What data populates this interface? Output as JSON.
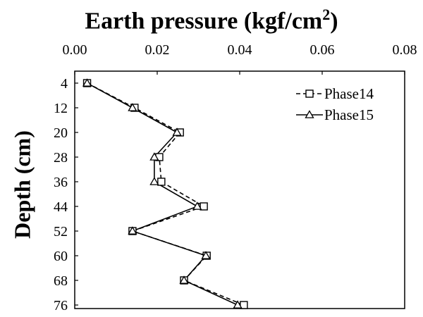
{
  "chart_data": {
    "type": "line",
    "title": "Earth pressure (kgf/cm",
    "title_superscript": "2",
    "title_suffix": ")",
    "ylabel": "Depth (cm)",
    "xlabel": "",
    "x_axis_position": "top",
    "y_axis_inverted": true,
    "xlim": [
      0,
      0.08
    ],
    "ylim": [
      4,
      76
    ],
    "x_ticks": [
      "0.00",
      "0.02",
      "0.04",
      "0.06",
      "0.08"
    ],
    "y_ticks": [
      "4",
      "12",
      "20",
      "28",
      "36",
      "44",
      "52",
      "60",
      "68",
      "76"
    ],
    "depths": [
      4,
      12,
      20,
      28,
      36,
      44,
      52,
      60,
      68,
      76
    ],
    "grid": false,
    "legend_position": "top-right",
    "series": [
      {
        "name": "Phase14",
        "marker": "square",
        "line": "dashed",
        "color": "#000000",
        "values": [
          0.003,
          0.0145,
          0.0255,
          0.0205,
          0.021,
          0.0313,
          0.014,
          0.032,
          0.0265,
          0.041
        ]
      },
      {
        "name": "Phase15",
        "marker": "triangle",
        "line": "solid",
        "color": "#000000",
        "values": [
          0.003,
          0.014,
          0.0248,
          0.0193,
          0.0193,
          0.0297,
          0.014,
          0.0318,
          0.0265,
          0.0395
        ]
      }
    ]
  }
}
